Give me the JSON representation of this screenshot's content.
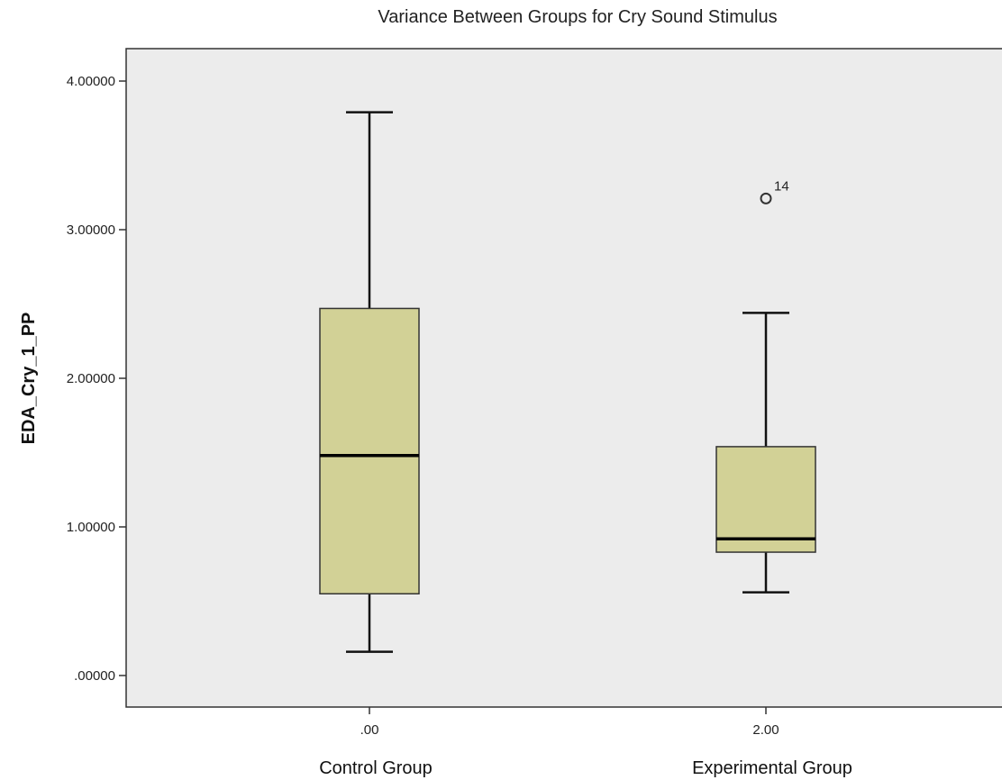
{
  "chart_data": {
    "type": "boxplot",
    "title": "Variance Between Groups for Cry Sound Stimulus",
    "xlabel": "",
    "ylabel": "EDA_Cry_1_PP",
    "ylim": [
      -0.2,
      4.2
    ],
    "y_ticks": [
      0,
      1,
      2,
      3,
      4
    ],
    "y_tick_labels": [
      ".00000",
      "1.00000",
      "2.00000",
      "3.00000",
      "4.00000"
    ],
    "grid": false,
    "box_fill": "#d2d196",
    "plot_background": "#ececec",
    "groups": [
      {
        "tick_label": ".00",
        "group_label": "Control Group",
        "min": 0.16,
        "q1": 0.55,
        "median": 1.48,
        "q3": 2.47,
        "max": 3.79,
        "outliers": []
      },
      {
        "tick_label": "2.00",
        "group_label": "Experimental Group",
        "min": 0.56,
        "q1": 0.83,
        "median": 0.92,
        "q3": 1.54,
        "max": 2.44,
        "outliers": [
          {
            "value": 3.21,
            "label": "14"
          }
        ]
      }
    ]
  }
}
